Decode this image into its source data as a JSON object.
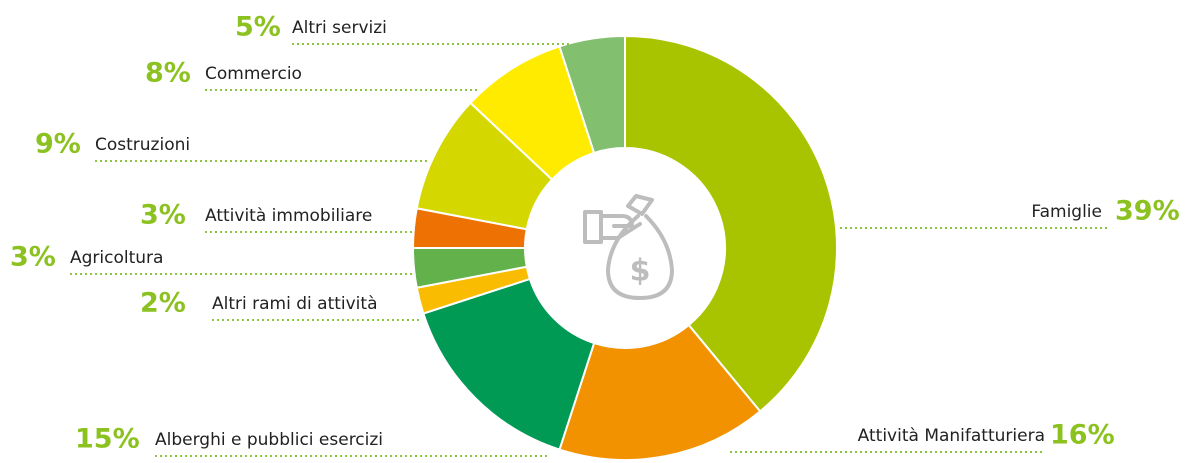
{
  "chart_data": {
    "type": "donut",
    "categories": [
      "Famiglie",
      "Attività Manifatturiera",
      "Alberghi e pubblici esercizi",
      "Altri rami di attività",
      "Agricoltura",
      "Attività immobiliare",
      "Costruzioni",
      "Commercio",
      "Altri servizi"
    ],
    "values": [
      39,
      16,
      15,
      2,
      3,
      3,
      9,
      8,
      5
    ],
    "value_labels": [
      "39%",
      "16%",
      "15%",
      "2%",
      "3%",
      "3%",
      "9%",
      "8%",
      "5%"
    ],
    "colors": [
      "#a8c400",
      "#f39200",
      "#009a55",
      "#f9bc00",
      "#63b14b",
      "#ee7203",
      "#d4d700",
      "#ffeb00",
      "#82bf6e"
    ]
  }
}
